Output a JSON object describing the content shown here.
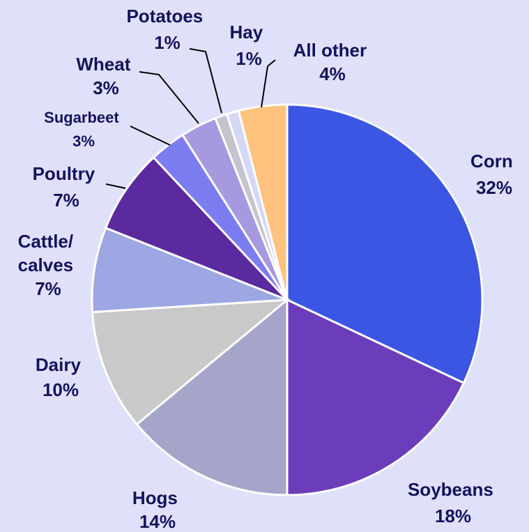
{
  "chart_data": {
    "type": "pie",
    "unit": "%",
    "slices": [
      {
        "name": "Corn",
        "value": 32,
        "label_lines": [
          "Corn",
          "32%"
        ],
        "color": "#3a56e2"
      },
      {
        "name": "Soybeans",
        "value": 18,
        "label_lines": [
          "Soybeans",
          "18%"
        ],
        "color": "#6c3dbb"
      },
      {
        "name": "Hogs",
        "value": 14,
        "label_lines": [
          "Hogs",
          "14%"
        ],
        "color": "#a5a5c9"
      },
      {
        "name": "Dairy",
        "value": 10,
        "label_lines": [
          "Dairy",
          "10%"
        ],
        "color": "#c9c9c9"
      },
      {
        "name": "Cattle/calves",
        "value": 7,
        "label_lines": [
          "Cattle/",
          "calves",
          "7%"
        ],
        "color": "#9ca7e3"
      },
      {
        "name": "Poultry",
        "value": 7,
        "label_lines": [
          "Poultry",
          "7%"
        ],
        "color": "#5a2a9e"
      },
      {
        "name": "Sugarbeet",
        "value": 3,
        "label_lines": [
          "Sugarbeet",
          "3%"
        ],
        "color": "#7c7cf1"
      },
      {
        "name": "Wheat",
        "value": 3,
        "label_lines": [
          "Wheat",
          "3%"
        ],
        "color": "#a799e0"
      },
      {
        "name": "Potatoes",
        "value": 1,
        "label_lines": [
          "Potatoes",
          "1%"
        ],
        "color": "#c4c4ce"
      },
      {
        "name": "Hay",
        "value": 1,
        "label_lines": [
          "Hay",
          "1%"
        ],
        "color": "#d5d8f5"
      },
      {
        "name": "All other",
        "value": 4,
        "label_lines": [
          "All other",
          "4%"
        ],
        "color": "#ffc27f"
      }
    ]
  }
}
